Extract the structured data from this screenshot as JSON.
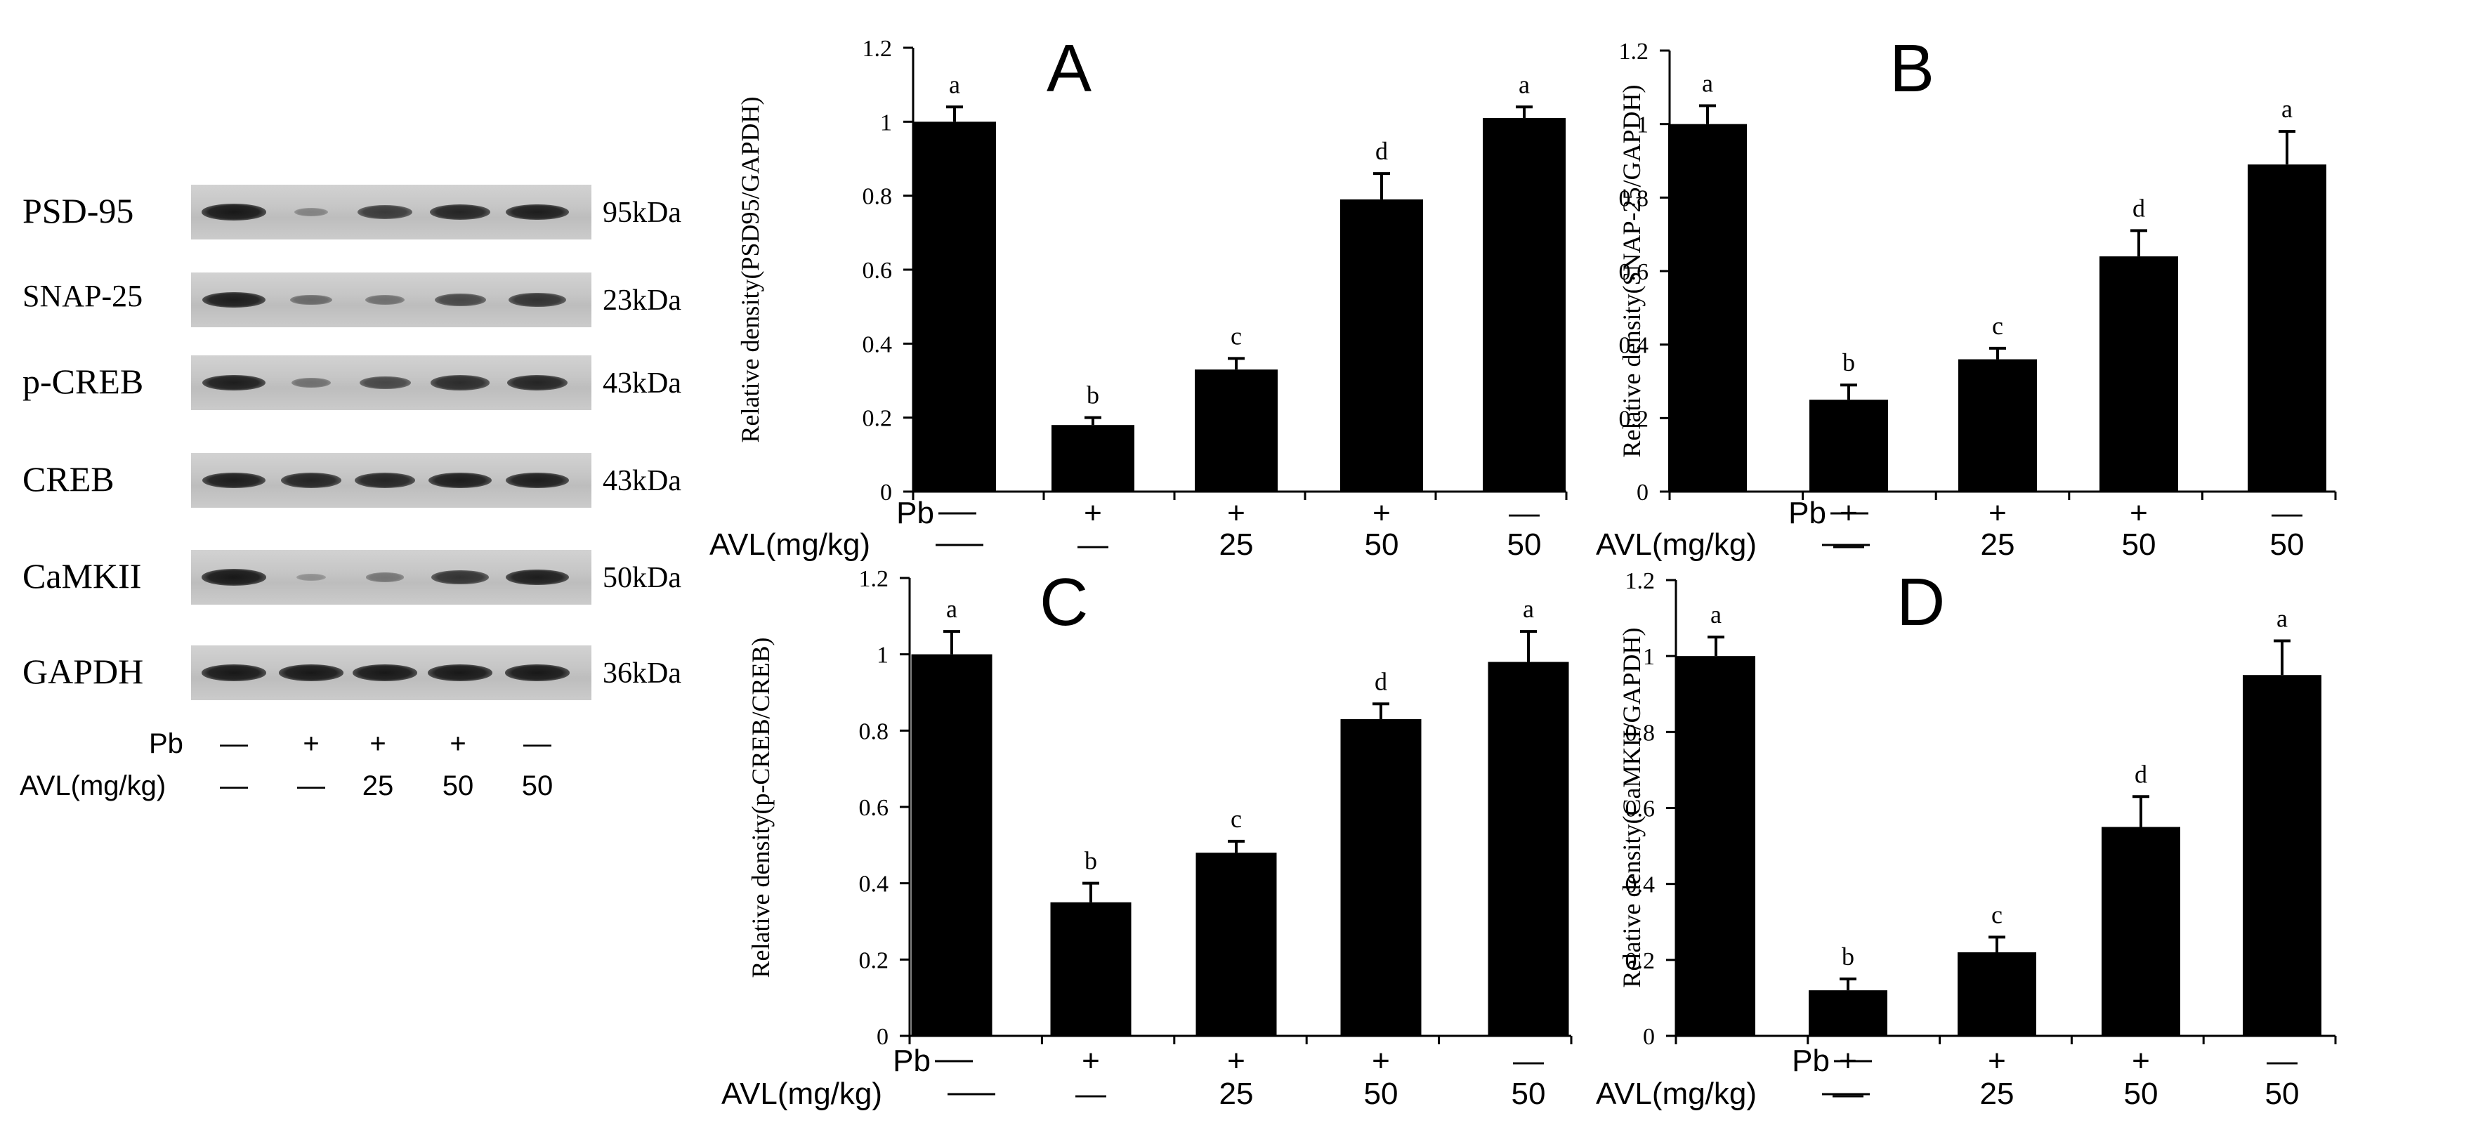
{
  "blot": {
    "rows": [
      {
        "protein": "PSD-95",
        "size": "95kDa",
        "intensities": [
          0.95,
          0.15,
          0.7,
          0.85,
          0.9
        ]
      },
      {
        "protein": "SNAP-25",
        "size": "23kDa",
        "intensities": [
          0.9,
          0.35,
          0.3,
          0.6,
          0.75
        ]
      },
      {
        "protein": "p-CREB",
        "size": "43kDa",
        "intensities": [
          0.9,
          0.3,
          0.6,
          0.8,
          0.85
        ]
      },
      {
        "protein": "CREB",
        "size": "43kDa",
        "intensities": [
          0.9,
          0.85,
          0.85,
          0.9,
          0.9
        ]
      },
      {
        "protein": "CaMKII",
        "size": "50kDa",
        "intensities": [
          0.95,
          0.05,
          0.25,
          0.75,
          0.9
        ]
      },
      {
        "protein": "GAPDH",
        "size": "36kDa",
        "intensities": [
          0.95,
          0.95,
          0.95,
          0.95,
          0.95
        ]
      }
    ],
    "pb_label": "Pb",
    "avl_label": "AVL(mg/kg)",
    "pb": [
      "—",
      "+",
      "+",
      "+",
      "—"
    ],
    "avl": [
      "—",
      "—",
      "25",
      "50",
      "50"
    ]
  },
  "chart_data": [
    {
      "type": "bar",
      "panel": "A",
      "ylabel": "Relative density(PSD95/GAPDH)",
      "ylim": [
        0,
        1.2
      ],
      "yticks": [
        "0",
        "0.2",
        "0.4",
        "0.6",
        "0.8",
        "1",
        "1.2"
      ],
      "values": [
        1.0,
        0.18,
        0.33,
        0.79,
        1.01
      ],
      "errors": [
        0.04,
        0.02,
        0.03,
        0.07,
        0.03
      ],
      "labels": [
        "a",
        "b",
        "c",
        "d",
        "a"
      ],
      "pb_label": "Pb",
      "avl_label": "AVL(mg/kg)",
      "pb": [
        "—",
        "+",
        "+",
        "+",
        "—"
      ],
      "avl": [
        "—",
        "—",
        "25",
        "50",
        "50"
      ]
    },
    {
      "type": "bar",
      "panel": "B",
      "ylabel": "Relative density(SNAP-25/GAPDH)",
      "ylim": [
        0,
        1.2
      ],
      "yticks": [
        "0",
        "0.2",
        "0.4",
        "0.6",
        "0.8",
        "1",
        "1.2"
      ],
      "values": [
        1.0,
        0.25,
        0.36,
        0.64,
        0.89
      ],
      "errors": [
        0.05,
        0.04,
        0.03,
        0.07,
        0.09
      ],
      "labels": [
        "a",
        "b",
        "c",
        "d",
        "a"
      ],
      "pb_label": "Pb",
      "avl_label": "AVL(mg/kg)",
      "pb": [
        "—",
        "+",
        "+",
        "+",
        "—"
      ],
      "avl": [
        "—",
        "—",
        "25",
        "50",
        "50"
      ]
    },
    {
      "type": "bar",
      "panel": "C",
      "ylabel": "Relative density(p-CREB/CREB)",
      "ylim": [
        0,
        1.2
      ],
      "yticks": [
        "0",
        "0.2",
        "0.4",
        "0.6",
        "0.8",
        "1",
        "1.2"
      ],
      "values": [
        1.0,
        0.35,
        0.48,
        0.83,
        0.98
      ],
      "errors": [
        0.06,
        0.05,
        0.03,
        0.04,
        0.08
      ],
      "labels": [
        "a",
        "b",
        "c",
        "d",
        "a"
      ],
      "pb_label": "Pb",
      "avl_label": "AVL(mg/kg)",
      "pb": [
        "—",
        "+",
        "+",
        "+",
        "—"
      ],
      "avl": [
        "—",
        "—",
        "25",
        "50",
        "50"
      ]
    },
    {
      "type": "bar",
      "panel": "D",
      "ylabel": "Relative density(CaMKII/GAPDH)",
      "ylim": [
        0,
        1.2
      ],
      "yticks": [
        "0",
        "0.2",
        "0.4",
        "0.6",
        "0.8",
        "1",
        "1.2"
      ],
      "values": [
        1.0,
        0.12,
        0.22,
        0.55,
        0.95
      ],
      "errors": [
        0.05,
        0.03,
        0.04,
        0.08,
        0.09
      ],
      "labels": [
        "a",
        "b",
        "c",
        "d",
        "a"
      ],
      "pb_label": "Pb",
      "avl_label": "AVL(mg/kg)",
      "pb": [
        "—",
        "+",
        "+",
        "+",
        "—"
      ],
      "avl": [
        "—",
        "—",
        "25",
        "50",
        "50"
      ]
    }
  ]
}
